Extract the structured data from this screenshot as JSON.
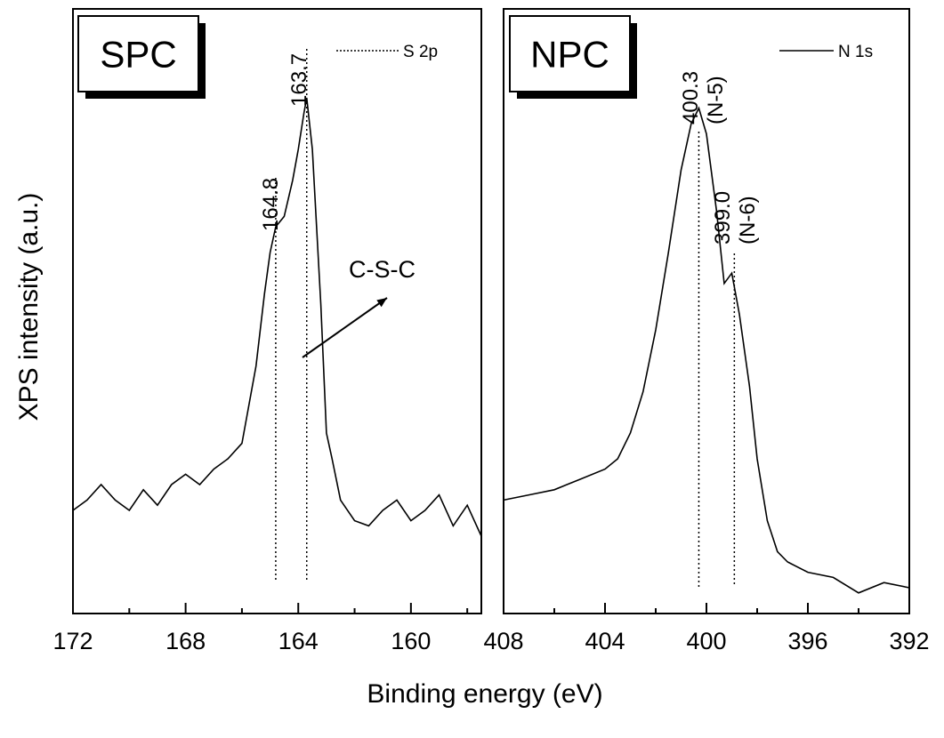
{
  "chart_data": {
    "type": "line",
    "xlabel": "Binding energy (eV)",
    "ylabel": "XPS intensity (a.u.)",
    "grid": false,
    "panels": [
      {
        "label": "SPC",
        "xlim": [
          172,
          157.5
        ],
        "ylim": [
          0,
          1
        ],
        "xticks": [
          172,
          168,
          164,
          160
        ],
        "series": [
          {
            "name": "S 2p",
            "style": "dotted",
            "x": [
              172.0,
              171.5,
              171.0,
              170.5,
              170.0,
              169.5,
              169.0,
              168.5,
              168.0,
              167.5,
              167.0,
              166.5,
              166.0,
              165.5,
              165.2,
              165.0,
              164.8,
              164.5,
              164.2,
              164.0,
              163.8,
              163.7,
              163.5,
              163.2,
              163.0,
              162.8,
              162.5,
              162.0,
              161.5,
              161.0,
              160.5,
              160.0,
              159.5,
              159.0,
              158.5,
              158.0,
              157.5
            ],
            "y": [
              0.2,
              0.22,
              0.25,
              0.22,
              0.2,
              0.24,
              0.21,
              0.25,
              0.27,
              0.25,
              0.28,
              0.3,
              0.33,
              0.48,
              0.62,
              0.7,
              0.75,
              0.77,
              0.84,
              0.9,
              0.97,
              1.0,
              0.9,
              0.6,
              0.35,
              0.3,
              0.22,
              0.18,
              0.17,
              0.2,
              0.22,
              0.18,
              0.2,
              0.23,
              0.17,
              0.21,
              0.15
            ]
          }
        ],
        "peaks": [
          {
            "label": "164.8",
            "x": 164.8
          },
          {
            "label": "163.7",
            "x": 163.7
          }
        ],
        "annotation": "C-S-C"
      },
      {
        "label": "NPC",
        "xlim": [
          408,
          392
        ],
        "ylim": [
          0,
          1
        ],
        "xticks": [
          408,
          404,
          400,
          396,
          392
        ],
        "series": [
          {
            "name": "N 1s",
            "style": "solid",
            "x": [
              408.0,
              407.0,
              406.0,
              405.0,
              404.0,
              403.5,
              403.0,
              402.5,
              402.0,
              401.5,
              401.0,
              400.6,
              400.3,
              400.0,
              399.6,
              399.3,
              399.0,
              398.7,
              398.3,
              398.0,
              397.6,
              397.2,
              396.8,
              396.0,
              395.0,
              394.0,
              393.0,
              392.0
            ],
            "y": [
              0.22,
              0.23,
              0.24,
              0.26,
              0.28,
              0.3,
              0.35,
              0.43,
              0.55,
              0.7,
              0.86,
              0.95,
              0.98,
              0.93,
              0.78,
              0.64,
              0.66,
              0.58,
              0.44,
              0.3,
              0.18,
              0.12,
              0.1,
              0.08,
              0.07,
              0.04,
              0.06,
              0.05
            ]
          }
        ],
        "peaks": [
          {
            "label": "400.3",
            "sublabel": "(N-5)",
            "x": 400.3
          },
          {
            "label": "399.0",
            "sublabel": "(N-6)",
            "x": 398.9
          }
        ]
      }
    ]
  }
}
